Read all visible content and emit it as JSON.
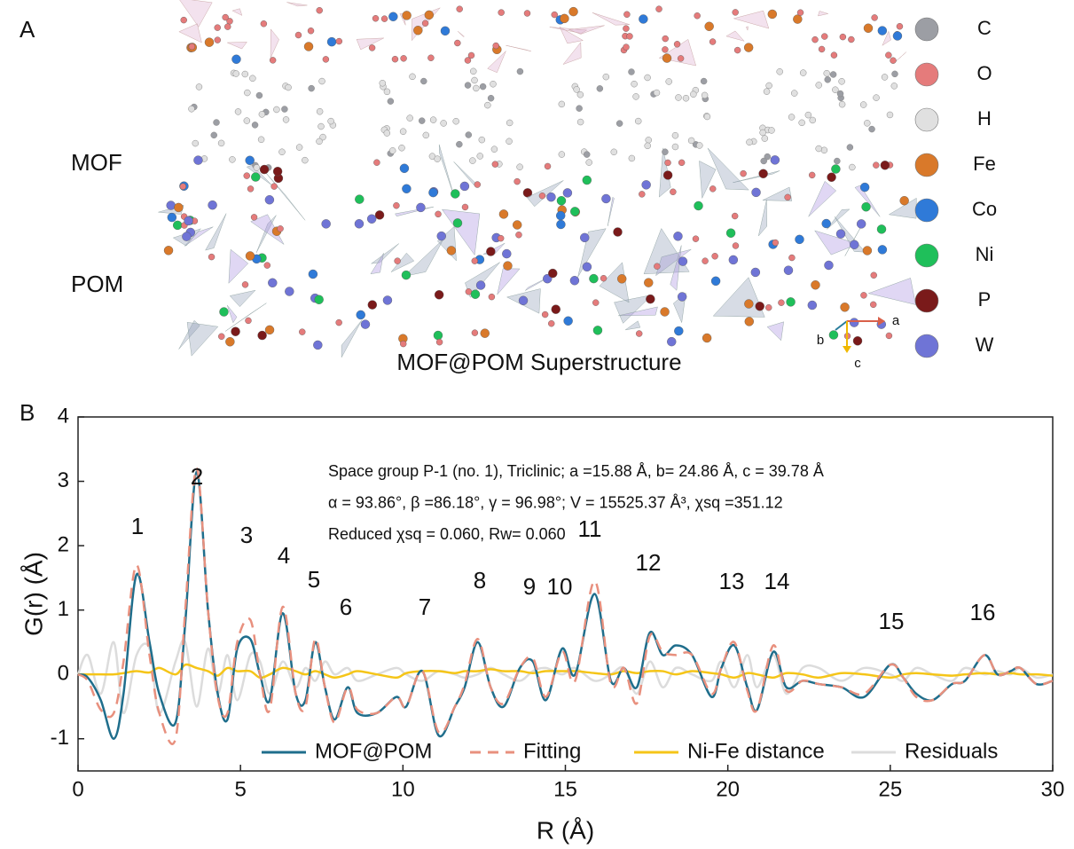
{
  "panel_a": {
    "panel_label": "A",
    "mof_label": "MOF",
    "pom_label": "POM",
    "caption": "MOF@POM Superstructure",
    "axes": [
      "a",
      "b",
      "c"
    ],
    "legend": [
      {
        "label": "C",
        "color": "#9c9ea4"
      },
      {
        "label": "O",
        "color": "#e57b7b"
      },
      {
        "label": "H",
        "color": "#e0e0e0"
      },
      {
        "label": "Fe",
        "color": "#d9792a"
      },
      {
        "label": "Co",
        "color": "#2f7ad8"
      },
      {
        "label": "Ni",
        "color": "#1fbf5a"
      },
      {
        "label": "P",
        "color": "#7a1a1a"
      },
      {
        "label": "W",
        "color": "#6f74d6"
      }
    ]
  },
  "chart_data": {
    "type": "line",
    "panel_label": "B",
    "xlabel": "R (Å)",
    "ylabel": "G(r) (Å)",
    "info": [
      "Space group P-1 (no. 1), Triclinic; a =15.88 Å, b= 24.86 Å, c = 39.78 Å",
      "α = 93.86°, β =86.18°, γ = 96.98°; V = 15525.37 Å³, χsq =351.12",
      "Reduced χsq = 0.060, Rw= 0.060"
    ],
    "peak_labels": [
      "1",
      "2",
      "3",
      "4",
      "5",
      "6",
      "7",
      "8",
      "9",
      "10",
      "11",
      "12",
      "13",
      "14",
      "15",
      "16"
    ],
    "xlim": [
      0,
      30
    ],
    "xticks": [
      0,
      5,
      10,
      15,
      20,
      25,
      30
    ],
    "ylim": [
      -1.5,
      4
    ],
    "yticks": [
      -1,
      0,
      1,
      2,
      3,
      4
    ],
    "x": [
      0,
      0.3,
      0.7,
      1.1,
      1.4,
      1.8,
      2.2,
      2.5,
      3.0,
      3.3,
      3.65,
      4.0,
      4.3,
      4.6,
      4.9,
      5.3,
      5.6,
      5.9,
      6.3,
      6.7,
      7.0,
      7.3,
      7.6,
      7.9,
      8.3,
      8.6,
      9.2,
      9.8,
      10.1,
      10.6,
      11.1,
      11.6,
      11.9,
      12.3,
      12.7,
      13.1,
      13.6,
      14.0,
      14.4,
      14.9,
      15.3,
      15.9,
      16.4,
      16.8,
      17.2,
      17.6,
      18.0,
      18.4,
      18.9,
      19.5,
      19.8,
      20.2,
      20.6,
      20.9,
      21.4,
      21.8,
      22.3,
      22.8,
      23.5,
      24.2,
      25.0,
      25.4,
      25.8,
      26.3,
      26.9,
      27.3,
      27.9,
      28.3,
      28.7,
      29.0,
      29.5,
      30
    ],
    "series": [
      {
        "name": "Residuals",
        "color": "#dcdcdc",
        "dash": false,
        "values": [
          0,
          0.3,
          -0.3,
          0.5,
          -0.6,
          0.3,
          0.4,
          -0.6,
          0.2,
          0.5,
          -0.5,
          0.4,
          -0.3,
          0.3,
          -0.4,
          0.3,
          0.2,
          -0.3,
          0.2,
          -0.2,
          0.1,
          -0.1,
          0.2,
          0.0,
          0.1,
          -0.1,
          0.0,
          0.1,
          0.0,
          -0.1,
          0.05,
          0.0,
          -0.05,
          0.0,
          0.1,
          0.0,
          -0.1,
          0.05,
          0.1,
          0.0,
          0.1,
          -0.1,
          0.0,
          0.1,
          -0.3,
          0.2,
          -0.2,
          0.1,
          0.0,
          -0.1,
          0.2,
          -0.2,
          0.3,
          -0.2,
          0.3,
          -0.3,
          0.1,
          0.1,
          -0.1,
          0.1,
          0.0,
          -0.1,
          0.1,
          0.0,
          -0.1,
          0.1,
          0.0,
          0.05,
          0.0,
          0.1,
          -0.05,
          0.0
        ]
      },
      {
        "name": "Ni-Fe distance",
        "color": "#f5c518",
        "dash": false,
        "values": [
          0,
          0,
          0,
          0,
          0.02,
          0.05,
          0.03,
          0.1,
          0.0,
          0.15,
          0.1,
          0.05,
          -0.02,
          0.1,
          0.05,
          0.05,
          -0.05,
          0.0,
          0.1,
          0.05,
          0,
          0.05,
          0.0,
          -0.05,
          0.0,
          0.05,
          0,
          -0.05,
          0.02,
          0.05,
          0.05,
          0.02,
          0.05,
          0.05,
          0.08,
          0.05,
          0.05,
          0.02,
          0.05,
          0.05,
          0.05,
          0.02,
          0.0,
          0.05,
          0.02,
          0.05,
          0.05,
          0.0,
          0.05,
          0.02,
          0.0,
          -0.05,
          0.02,
          0.0,
          -0.05,
          0.02,
          0.0,
          -0.05,
          0.02,
          0.0,
          -0.05,
          0.0,
          0.02,
          0.0,
          -0.02,
          0.0,
          0.02,
          0.0,
          0.02,
          0.0,
          0.0,
          -0.02
        ]
      },
      {
        "name": "MOF@POM",
        "color": "#1f6e8c",
        "dash": false,
        "values": [
          0,
          -0.05,
          -0.4,
          -1.0,
          -0.3,
          1.55,
          0.5,
          -0.3,
          -0.75,
          0.8,
          3.15,
          1.0,
          -0.3,
          -0.7,
          0.4,
          0.55,
          0.0,
          -0.4,
          0.95,
          -0.3,
          -0.4,
          0.5,
          -0.2,
          -0.7,
          -0.2,
          -0.6,
          -0.6,
          -0.35,
          -0.5,
          0.05,
          -0.95,
          -0.5,
          -0.2,
          0.5,
          -0.2,
          -0.5,
          0.1,
          0.2,
          -0.4,
          0.4,
          0.0,
          1.25,
          -0.1,
          0.1,
          -0.2,
          0.65,
          0.3,
          0.45,
          0.3,
          -0.35,
          0.1,
          0.45,
          -0.2,
          -0.55,
          0.35,
          -0.2,
          -0.1,
          -0.15,
          -0.2,
          -0.35,
          0.15,
          -0.05,
          -0.3,
          -0.4,
          -0.15,
          -0.1,
          0.3,
          0.0,
          0.05,
          0.1,
          -0.15,
          -0.1
        ]
      },
      {
        "name": "Fitting",
        "color": "#e8907e",
        "dash": true,
        "values": [
          0,
          -0.1,
          -0.55,
          -0.6,
          0.2,
          1.7,
          0.3,
          -0.6,
          -1.0,
          1.0,
          3.2,
          1.0,
          -0.35,
          -0.6,
          0.5,
          0.85,
          0.0,
          -0.55,
          1.05,
          -0.3,
          -0.5,
          0.55,
          -0.2,
          -0.75,
          -0.2,
          -0.55,
          -0.6,
          -0.35,
          -0.5,
          0.05,
          -0.9,
          -0.5,
          -0.15,
          0.55,
          -0.2,
          -0.45,
          0.1,
          0.25,
          -0.35,
          0.35,
          -0.1,
          1.45,
          -0.15,
          0.1,
          -0.45,
          0.6,
          0.35,
          0.3,
          0.3,
          -0.3,
          0.1,
          0.5,
          -0.25,
          -0.55,
          0.45,
          -0.25,
          -0.1,
          -0.15,
          -0.2,
          -0.3,
          0.15,
          -0.05,
          -0.35,
          -0.4,
          -0.15,
          -0.1,
          0.3,
          0.0,
          0.05,
          0.1,
          -0.15,
          -0.1
        ]
      }
    ],
    "legend_order": [
      2,
      3,
      1,
      0
    ]
  }
}
